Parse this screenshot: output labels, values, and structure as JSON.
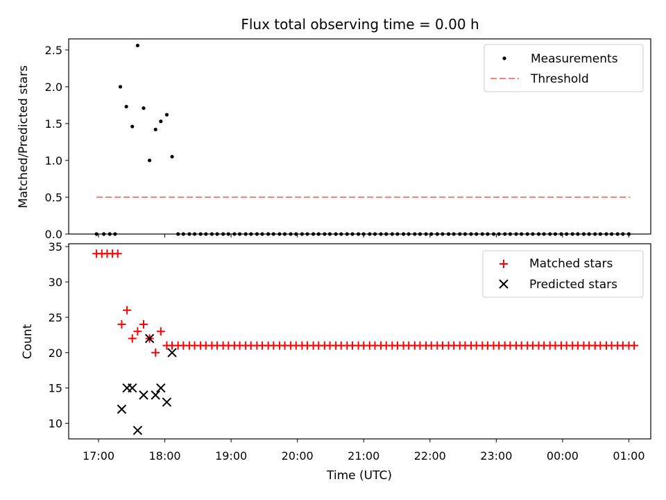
{
  "chart_data": [
    {
      "type": "scatter",
      "title": "Flux total observing time = 0.00 h",
      "ylabel": "Matched/Predicted stars",
      "ylim": [
        0,
        2.65
      ],
      "yticks": [
        "0.0",
        "0.5",
        "1.0",
        "1.5",
        "2.0",
        "2.5"
      ],
      "legend_position": "top-right",
      "legend": {
        "measurements": "Measurements",
        "threshold": "Threshold"
      },
      "colors": {
        "measurements": "#000000",
        "threshold": "#ff7f7f"
      },
      "threshold": {
        "name": "Threshold",
        "value": 0.5,
        "x_start": 16.97,
        "x_end": 25.02
      },
      "measurements": {
        "name": "Measurements",
        "x": [
          16.97,
          17.08,
          17.17,
          17.25,
          17.33,
          17.42,
          17.51,
          17.59,
          17.68,
          17.77,
          17.86,
          17.94,
          18.03,
          18.11,
          18.2,
          18.28,
          18.37,
          18.45,
          18.54,
          18.62,
          18.71,
          18.79,
          18.88,
          18.96,
          19.05,
          19.13,
          19.22,
          19.3,
          19.39,
          19.47,
          19.56,
          19.64,
          19.73,
          19.81,
          19.9,
          19.98,
          20.07,
          20.15,
          20.24,
          20.32,
          20.41,
          20.49,
          20.58,
          20.66,
          20.75,
          20.83,
          20.92,
          21.0,
          21.09,
          21.17,
          21.26,
          21.34,
          21.43,
          21.51,
          21.6,
          21.68,
          21.77,
          21.85,
          21.94,
          22.02,
          22.11,
          22.19,
          22.28,
          22.36,
          22.45,
          22.53,
          22.62,
          22.7,
          22.79,
          22.87,
          22.96,
          23.04,
          23.13,
          23.21,
          23.3,
          23.38,
          23.47,
          23.55,
          23.64,
          23.72,
          23.81,
          23.89,
          23.98,
          24.06,
          24.15,
          24.23,
          24.32,
          24.4,
          24.49,
          24.57,
          24.66,
          24.74,
          24.83,
          24.91,
          25.0
        ],
        "y": [
          0,
          0,
          0,
          0,
          2.0,
          1.73,
          1.46,
          2.56,
          1.71,
          1.0,
          1.42,
          1.53,
          1.62,
          1.05,
          0,
          0,
          0,
          0,
          0,
          0,
          0,
          0,
          0,
          0,
          0,
          0,
          0,
          0,
          0,
          0,
          0,
          0,
          0,
          0,
          0,
          0,
          0,
          0,
          0,
          0,
          0,
          0,
          0,
          0,
          0,
          0,
          0,
          0,
          0,
          0,
          0,
          0,
          0,
          0,
          0,
          0,
          0,
          0,
          0,
          0,
          0,
          0,
          0,
          0,
          0,
          0,
          0,
          0,
          0,
          0,
          0,
          0,
          0,
          0,
          0,
          0,
          0,
          0,
          0,
          0,
          0,
          0,
          0,
          0,
          0,
          0,
          0,
          0,
          0,
          0,
          0,
          0,
          0,
          0,
          0
        ]
      }
    },
    {
      "type": "scatter",
      "xlabel": "Time (UTC)",
      "ylabel": "Count",
      "ylim": [
        7.8,
        35.4
      ],
      "yticks": [
        "10",
        "15",
        "20",
        "25",
        "30",
        "35"
      ],
      "xlim": [
        16.55,
        25.33
      ],
      "xtick_values": [
        17,
        18,
        19,
        20,
        21,
        22,
        23,
        24,
        25
      ],
      "xticks": [
        "17:00",
        "18:00",
        "19:00",
        "20:00",
        "21:00",
        "22:00",
        "23:00",
        "00:00",
        "01:00"
      ],
      "legend_position": "top-right",
      "legend": {
        "matched": "Matched stars",
        "predicted": "Predicted stars"
      },
      "colors": {
        "matched": "#ff0000",
        "predicted": "#000000"
      },
      "matched": {
        "name": "Matched stars",
        "x": [
          16.97,
          17.05,
          17.13,
          17.21,
          17.29,
          17.35,
          17.43,
          17.51,
          17.59,
          17.68,
          17.77,
          17.86,
          17.94,
          18.03,
          18.11,
          18.2,
          18.28,
          18.37,
          18.45,
          18.54,
          18.62,
          18.71,
          18.79,
          18.88,
          18.96,
          19.05,
          19.13,
          19.22,
          19.3,
          19.39,
          19.47,
          19.56,
          19.64,
          19.73,
          19.81,
          19.9,
          19.98,
          20.07,
          20.15,
          20.24,
          20.32,
          20.41,
          20.49,
          20.58,
          20.66,
          20.75,
          20.83,
          20.92,
          21.0,
          21.09,
          21.17,
          21.26,
          21.34,
          21.43,
          21.51,
          21.6,
          21.68,
          21.77,
          21.85,
          21.94,
          22.02,
          22.11,
          22.19,
          22.28,
          22.36,
          22.45,
          22.53,
          22.62,
          22.7,
          22.79,
          22.87,
          22.96,
          23.04,
          23.13,
          23.21,
          23.3,
          23.38,
          23.47,
          23.55,
          23.64,
          23.72,
          23.81,
          23.89,
          23.98,
          24.06,
          24.15,
          24.23,
          24.32,
          24.4,
          24.49,
          24.57,
          24.66,
          24.74,
          24.83,
          24.91,
          25.0,
          25.08
        ],
        "y": [
          34,
          34,
          34,
          34,
          34,
          24,
          26,
          22,
          23,
          24,
          22,
          20,
          23,
          21,
          21,
          21,
          21,
          21,
          21,
          21,
          21,
          21,
          21,
          21,
          21,
          21,
          21,
          21,
          21,
          21,
          21,
          21,
          21,
          21,
          21,
          21,
          21,
          21,
          21,
          21,
          21,
          21,
          21,
          21,
          21,
          21,
          21,
          21,
          21,
          21,
          21,
          21,
          21,
          21,
          21,
          21,
          21,
          21,
          21,
          21,
          21,
          21,
          21,
          21,
          21,
          21,
          21,
          21,
          21,
          21,
          21,
          21,
          21,
          21,
          21,
          21,
          21,
          21,
          21,
          21,
          21,
          21,
          21,
          21,
          21,
          21,
          21,
          21,
          21,
          21,
          21,
          21,
          21,
          21,
          21,
          21,
          21
        ]
      },
      "predicted": {
        "name": "Predicted stars",
        "x": [
          17.35,
          17.43,
          17.51,
          17.59,
          17.68,
          17.77,
          17.86,
          17.94,
          18.03,
          18.11
        ],
        "y": [
          12,
          15,
          15,
          9,
          14,
          22,
          14,
          15,
          13,
          20
        ]
      }
    }
  ]
}
